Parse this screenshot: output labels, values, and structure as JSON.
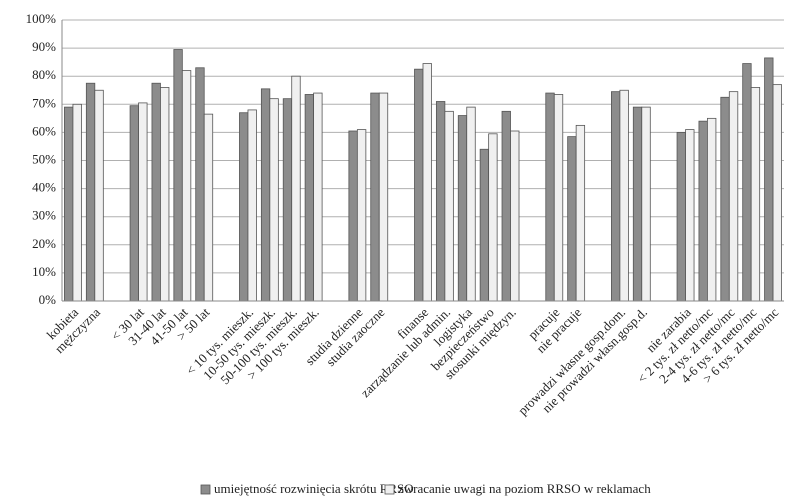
{
  "chart_data": {
    "type": "bar",
    "categories": [
      "kobieta",
      "mężczyzna",
      null,
      "< 30 lat",
      "31-40 lat",
      "41-50 lat",
      "> 50 lat",
      null,
      "< 10 tys. mieszk.",
      "10-50 tys. mieszk.",
      "50-100 tys. mieszk.",
      "> 100 tys. mieszk.",
      null,
      "studia dzienne",
      "studia zaoczne",
      null,
      "finanse",
      "zarządzanie lub admin.",
      "logistyka",
      "bezpieczeństwo",
      "stosunki międzyn.",
      null,
      "pracuje",
      "nie pracuje",
      null,
      "prowadzi własne gosp.dom.",
      "nie prowadzi własn.gosp.d.",
      null,
      "nie zarabia",
      "< 2 tys. zł netto/mc",
      "2-4 tys. zł netto/mc",
      "4-6 tys. zł netto/mc",
      "> 6 tys. zł netto/mc"
    ],
    "series": [
      {
        "name": "umiejętność rozwinięcia skrótu RRSO",
        "color": "#8c8c8c",
        "values": [
          69,
          77.5,
          null,
          69.5,
          77.5,
          89.5,
          83,
          null,
          67,
          75.5,
          72,
          73.5,
          null,
          60.5,
          74,
          null,
          82.5,
          71,
          66,
          54,
          67.5,
          null,
          74,
          58.5,
          null,
          74.5,
          69,
          null,
          60,
          64,
          72.5,
          84.5,
          86.5
        ]
      },
      {
        "name": "zwracanie uwagi na poziom RRSO w reklamach",
        "color": "#f0f0f0",
        "values": [
          70,
          75,
          null,
          70.5,
          76,
          82,
          66.5,
          null,
          68,
          72,
          80,
          74,
          null,
          61,
          74,
          null,
          84.5,
          67.5,
          69,
          59.5,
          60.5,
          null,
          73.5,
          62.5,
          null,
          75,
          69,
          null,
          61,
          65,
          74.5,
          76,
          77
        ]
      }
    ],
    "ylim": [
      0,
      100
    ],
    "yticks": [
      {
        "value": 0,
        "label": "0%"
      },
      {
        "value": 10,
        "label": "10%"
      },
      {
        "value": 20,
        "label": "20%"
      },
      {
        "value": 30,
        "label": "30%"
      },
      {
        "value": 40,
        "label": "40%"
      },
      {
        "value": 50,
        "label": "50%"
      },
      {
        "value": 60,
        "label": "60%"
      },
      {
        "value": 70,
        "label": "70%"
      },
      {
        "value": 80,
        "label": "80%"
      },
      {
        "value": 90,
        "label": "90%"
      },
      {
        "value": 100,
        "label": "100%"
      }
    ],
    "grid": true
  }
}
